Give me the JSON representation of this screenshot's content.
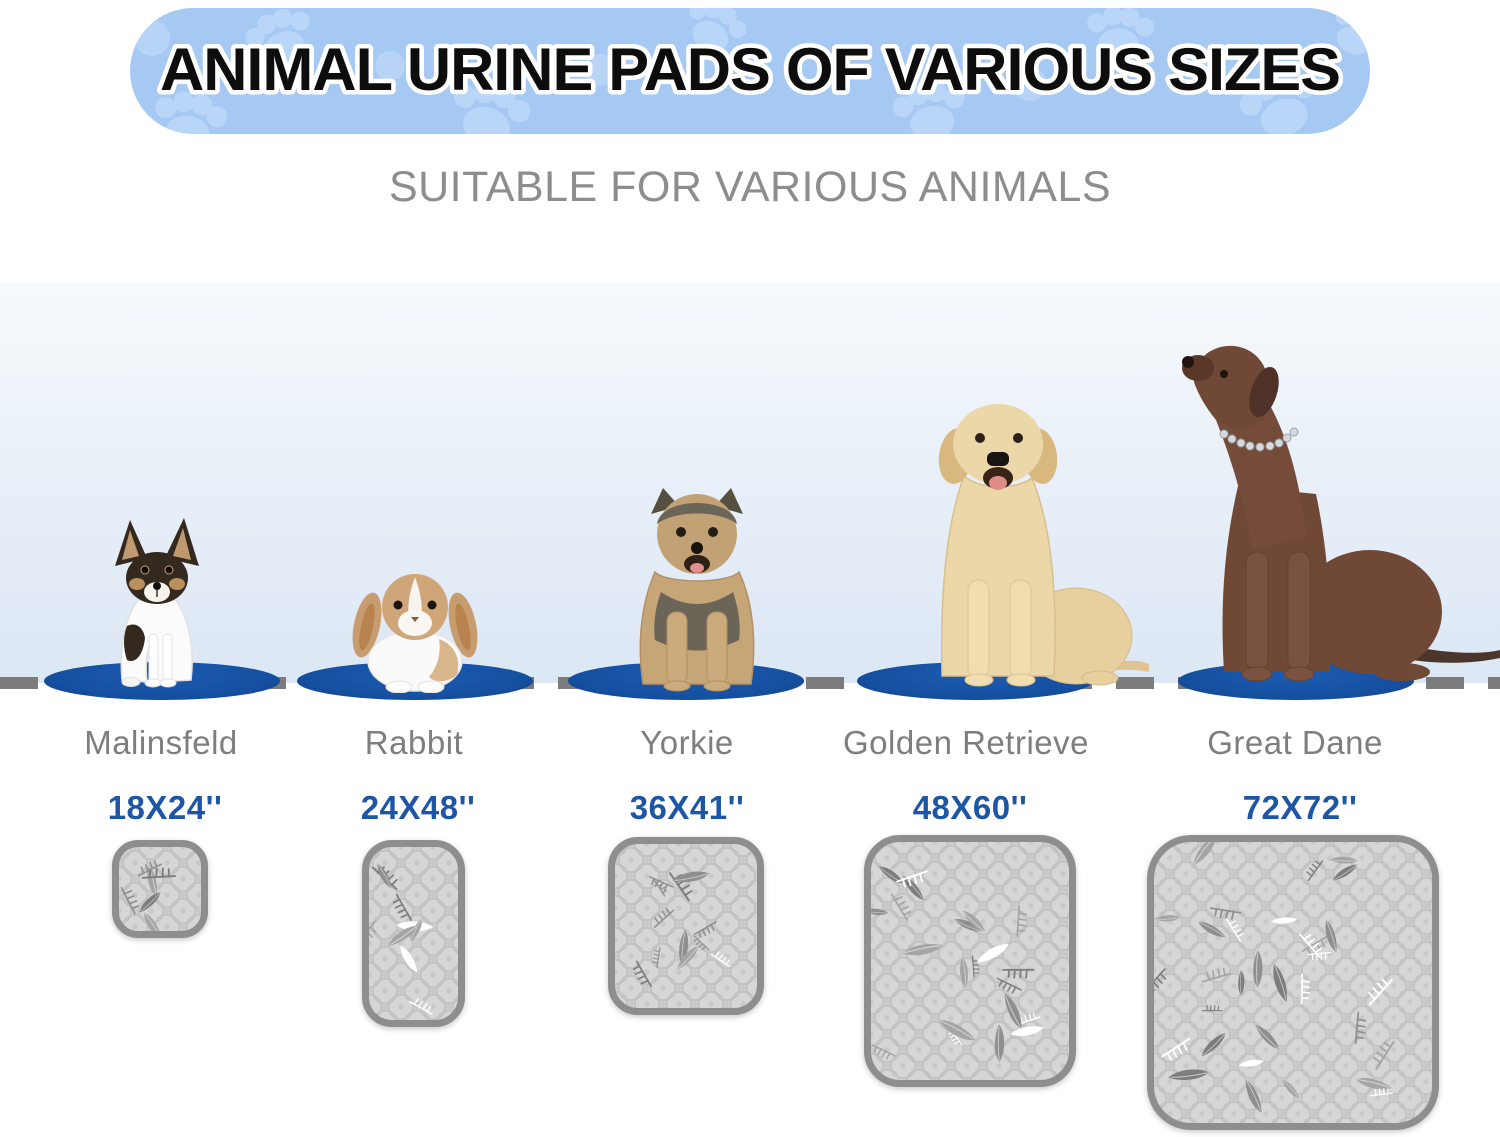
{
  "banner": {
    "title": "ANIMAL URINE PADS OF VARIOUS SIZES",
    "pattern_icon": "paw-print-icon"
  },
  "subtitle": "SUITABLE FOR VARIOUS ANIMALS",
  "items": [
    {
      "animal": "Malinsfeld",
      "size": "18X24''"
    },
    {
      "animal": "Rabbit",
      "size": "24X48''"
    },
    {
      "animal": "Yorkie",
      "size": "36X41''"
    },
    {
      "animal": "Golden Retrieve",
      "size": "48X60''"
    },
    {
      "animal": "Great Dane",
      "size": "72X72''"
    }
  ],
  "colors": {
    "banner_bg": "#a6c9f3",
    "banner_paw": "#bfd9f8",
    "title_text": "#0d0d0d",
    "subtitle_text": "#8d8d8d",
    "animal_label": "#7e7e7e",
    "size_label": "#1e56a6",
    "oval_blue": "#154f9f",
    "dash_gray": "#7b7b7b",
    "pad_fill": "#d6d6d6",
    "pad_border": "#8e8e8e"
  }
}
